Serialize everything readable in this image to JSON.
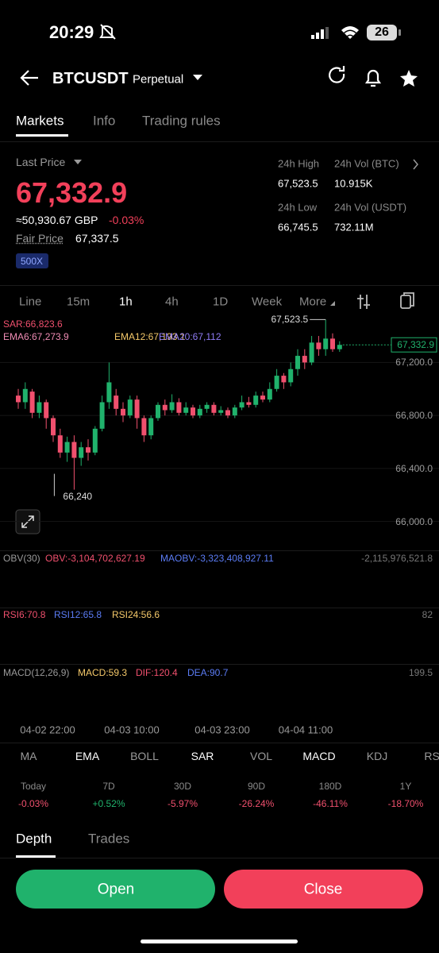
{
  "status_bar": {
    "time": "20:29",
    "battery": "26"
  },
  "header": {
    "symbol": "BTCUSDT",
    "contract": "Perpetual"
  },
  "tabs": [
    "Markets",
    "Info",
    "Trading rules"
  ],
  "price": {
    "label": "Last Price",
    "last": "67,332.9",
    "approx": "≈50,930.67 GBP",
    "change": "-0.03%",
    "fair_label": "Fair Price",
    "fair": "67,337.5",
    "leverage": "500X"
  },
  "stats": [
    {
      "label": "24h High",
      "value": "67,523.5"
    },
    {
      "label": "24h Vol (BTC)",
      "value": "10.915K"
    },
    {
      "label": "24h Low",
      "value": "66,745.5"
    },
    {
      "label": "24h Vol  (USDT)",
      "value": "732.11M"
    }
  ],
  "intervals": [
    "Line",
    "15m",
    "1h",
    "4h",
    "1D",
    "Week",
    "More"
  ],
  "chart": {
    "type": "candlestick",
    "legend": [
      {
        "text": "SAR:66,823.6",
        "color": "#f0506e"
      },
      {
        "text": "EMA6:67,273.9",
        "color": "#f08cb4"
      },
      {
        "text": "EMA12:67,193.1",
        "color": "#f5c96a"
      },
      {
        "text": "EMA20:67,112",
        "color": "#8f7cf5"
      }
    ],
    "candles": [
      [
        66950,
        66900,
        67000,
        66850
      ],
      [
        66900,
        67000,
        67050,
        66850
      ],
      [
        66980,
        66820,
        67000,
        66780
      ],
      [
        66820,
        66900,
        66950,
        66780
      ],
      [
        66900,
        66780,
        66920,
        66700
      ],
      [
        66780,
        66650,
        66800,
        66600
      ],
      [
        66650,
        66520,
        66700,
        66480
      ],
      [
        66520,
        66600,
        66640,
        66450
      ],
      [
        66600,
        66480,
        66650,
        66240
      ],
      [
        66480,
        66560,
        66600,
        66420
      ],
      [
        66560,
        66520,
        66620,
        66460
      ],
      [
        66520,
        66700,
        66720,
        66500
      ],
      [
        66700,
        66900,
        66950,
        66680
      ],
      [
        66900,
        67050,
        67200,
        66850
      ],
      [
        66950,
        66850,
        67000,
        66800
      ],
      [
        66850,
        66800,
        66900,
        66750
      ],
      [
        66800,
        66920,
        66950,
        66780
      ],
      [
        66920,
        66780,
        66950,
        66700
      ],
      [
        66780,
        66650,
        66800,
        66600
      ],
      [
        66650,
        66780,
        66800,
        66620
      ],
      [
        66780,
        66880,
        66900,
        66760
      ],
      [
        66880,
        66840,
        66920,
        66800
      ],
      [
        66840,
        66900,
        66960,
        66820
      ],
      [
        66900,
        66820,
        66930,
        66800
      ],
      [
        66820,
        66860,
        66900,
        66800
      ],
      [
        66860,
        66800,
        66880,
        66780
      ],
      [
        66800,
        66850,
        66880,
        66780
      ],
      [
        66850,
        66880,
        66900,
        66820
      ],
      [
        66880,
        66820,
        66900,
        66800
      ],
      [
        66820,
        66840,
        66870,
        66800
      ],
      [
        66840,
        66800,
        66860,
        66780
      ],
      [
        66800,
        66860,
        66880,
        66780
      ],
      [
        66860,
        66900,
        66950,
        66840
      ],
      [
        66900,
        66880,
        66940,
        66860
      ],
      [
        66880,
        66950,
        66980,
        66860
      ],
      [
        66950,
        66920,
        66980,
        66900
      ],
      [
        66920,
        67000,
        67050,
        66900
      ],
      [
        67000,
        67100,
        67150,
        66980
      ],
      [
        67100,
        67050,
        67120,
        67000
      ],
      [
        67050,
        67150,
        67200,
        67020
      ],
      [
        67150,
        67250,
        67300,
        67100
      ],
      [
        67250,
        67200,
        67300,
        67150
      ],
      [
        67200,
        67350,
        67400,
        67180
      ],
      [
        67350,
        67300,
        67400,
        67250
      ],
      [
        67300,
        67380,
        67523.5,
        67250
      ],
      [
        67380,
        67300,
        67420,
        67280
      ],
      [
        67300,
        67332.9,
        67360,
        67280
      ]
    ],
    "ylim": [
      65800,
      67550
    ],
    "yticks": [
      {
        "value": 67200,
        "label": "67,200.0"
      },
      {
        "value": 66800,
        "label": "66,800.0"
      },
      {
        "value": 66400,
        "label": "66,400.0"
      },
      {
        "value": 66000,
        "label": "66,000.0"
      }
    ],
    "high_label": "67,523.5",
    "low_label": "66,240",
    "price_tag": "67,332.9",
    "time_labels": [
      "04-02 22:00",
      "04-03 10:00",
      "04-03 23:00",
      "04-04 11:00"
    ]
  },
  "panels": [
    {
      "items": [
        {
          "text": "OBV(30)",
          "color": "#9a9a9a"
        },
        {
          "text": "OBV:-3,104,702,627.19",
          "color": "#f0506e"
        },
        {
          "text": "MAOBV:-3,323,408,927.11",
          "color": "#5b7cf5"
        }
      ],
      "axis_label": "-2,115,976,521.8"
    },
    {
      "items": [
        {
          "text": "RSI6:70.8",
          "color": "#f0506e"
        },
        {
          "text": "RSI12:65.8",
          "color": "#5b7cf5"
        },
        {
          "text": "RSI24:56.6",
          "color": "#f5c96a"
        }
      ],
      "axis_label": "82"
    },
    {
      "items": [
        {
          "text": "MACD(12,26,9)",
          "color": "#9a9a9a"
        },
        {
          "text": "MACD:59.3",
          "color": "#f5c96a"
        },
        {
          "text": "DIF:120.4",
          "color": "#f0506e"
        },
        {
          "text": "DEA:90.7",
          "color": "#5b7cf5"
        }
      ],
      "axis_label": "199.5"
    }
  ],
  "indicator_tabs": [
    "MA",
    "EMA",
    "BOLL",
    "SAR",
    "VOL",
    "MACD",
    "KDJ",
    "RSI"
  ],
  "performance": [
    {
      "period": "Today",
      "change": "-0.03%",
      "color": "#f0506e"
    },
    {
      "period": "7D",
      "change": "+0.52%",
      "color": "#20b26c"
    },
    {
      "period": "30D",
      "change": "-5.97%",
      "color": "#f0506e"
    },
    {
      "period": "90D",
      "change": "-26.24%",
      "color": "#f0506e"
    },
    {
      "period": "180D",
      "change": "-46.11%",
      "color": "#f0506e"
    },
    {
      "period": "1Y",
      "change": "-18.70%",
      "color": "#f0506e"
    }
  ],
  "bottom_tabs": [
    "Depth",
    "Trades"
  ],
  "actions": [
    "Open",
    "Close"
  ]
}
